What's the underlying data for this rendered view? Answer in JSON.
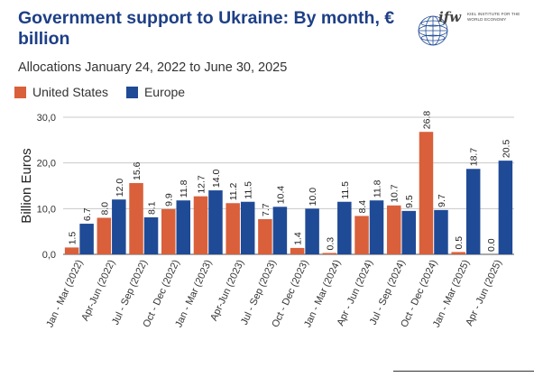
{
  "header": {
    "title": "Government support to Ukraine: By month, € billion",
    "subtitle": "Allocations January 24, 2022 to June 30, 2025"
  },
  "logo": {
    "mark": "ifw",
    "text": "KIEL INSTITUTE FOR THE WORLD ECONOMY"
  },
  "colors": {
    "united_states": "#d9603b",
    "europe": "#1f4a96",
    "title": "#1d3f86"
  },
  "chart_data": {
    "type": "bar",
    "title": "Government support to Ukraine: By month, € billion",
    "subtitle": "Allocations January 24, 2022 to June 30, 2025",
    "xlabel": "",
    "ylabel": "Billion Euros",
    "ylim": [
      0,
      30
    ],
    "yticks": [
      "0,0",
      "10,0",
      "20,0",
      "30,0"
    ],
    "ytick_values": [
      0,
      10,
      20,
      30
    ],
    "grid": true,
    "legend_position": "top-left",
    "categories": [
      "Jan - Mar (2022)",
      "Apr-Jun (2022)",
      "Jul - Sep (2022)",
      "Oct - Dec (2022)",
      "Jan - Mar (2023)",
      "Apr-Jun (2023)",
      "Jul - Sep (2023)",
      "Oct - Dec (2023)",
      "Jan - Mar (2024)",
      "Apr - Jun (2024)",
      "Jul - Sep (2024)",
      "Oct - Dec (2024)",
      "Jan - Mar (2025)",
      "Apr - Jun (2025)"
    ],
    "series": [
      {
        "name": "United States",
        "values": [
          1.5,
          8.0,
          15.6,
          9.9,
          12.7,
          11.2,
          7.7,
          1.4,
          0.3,
          8.4,
          10.7,
          26.8,
          0.5,
          0.0
        ],
        "labels": [
          "1.5",
          "8.0",
          "15.6",
          "9.9",
          "12.7",
          "11.2",
          "7.7",
          "1.4",
          "0.3",
          "8.4",
          "10.7",
          "26.8",
          "0.5",
          "0.0"
        ]
      },
      {
        "name": "Europe",
        "values": [
          6.7,
          12.0,
          8.1,
          11.8,
          14.0,
          11.5,
          10.4,
          10.0,
          11.5,
          11.8,
          9.5,
          9.7,
          18.7,
          20.5
        ],
        "labels": [
          "6.7",
          "12.0",
          "8.1",
          "11.8",
          "14.0",
          "11.5",
          "10.4",
          "10.0",
          "11.5",
          "11.8",
          "9.5",
          "9.7",
          "18.7",
          "20.5"
        ]
      }
    ]
  }
}
